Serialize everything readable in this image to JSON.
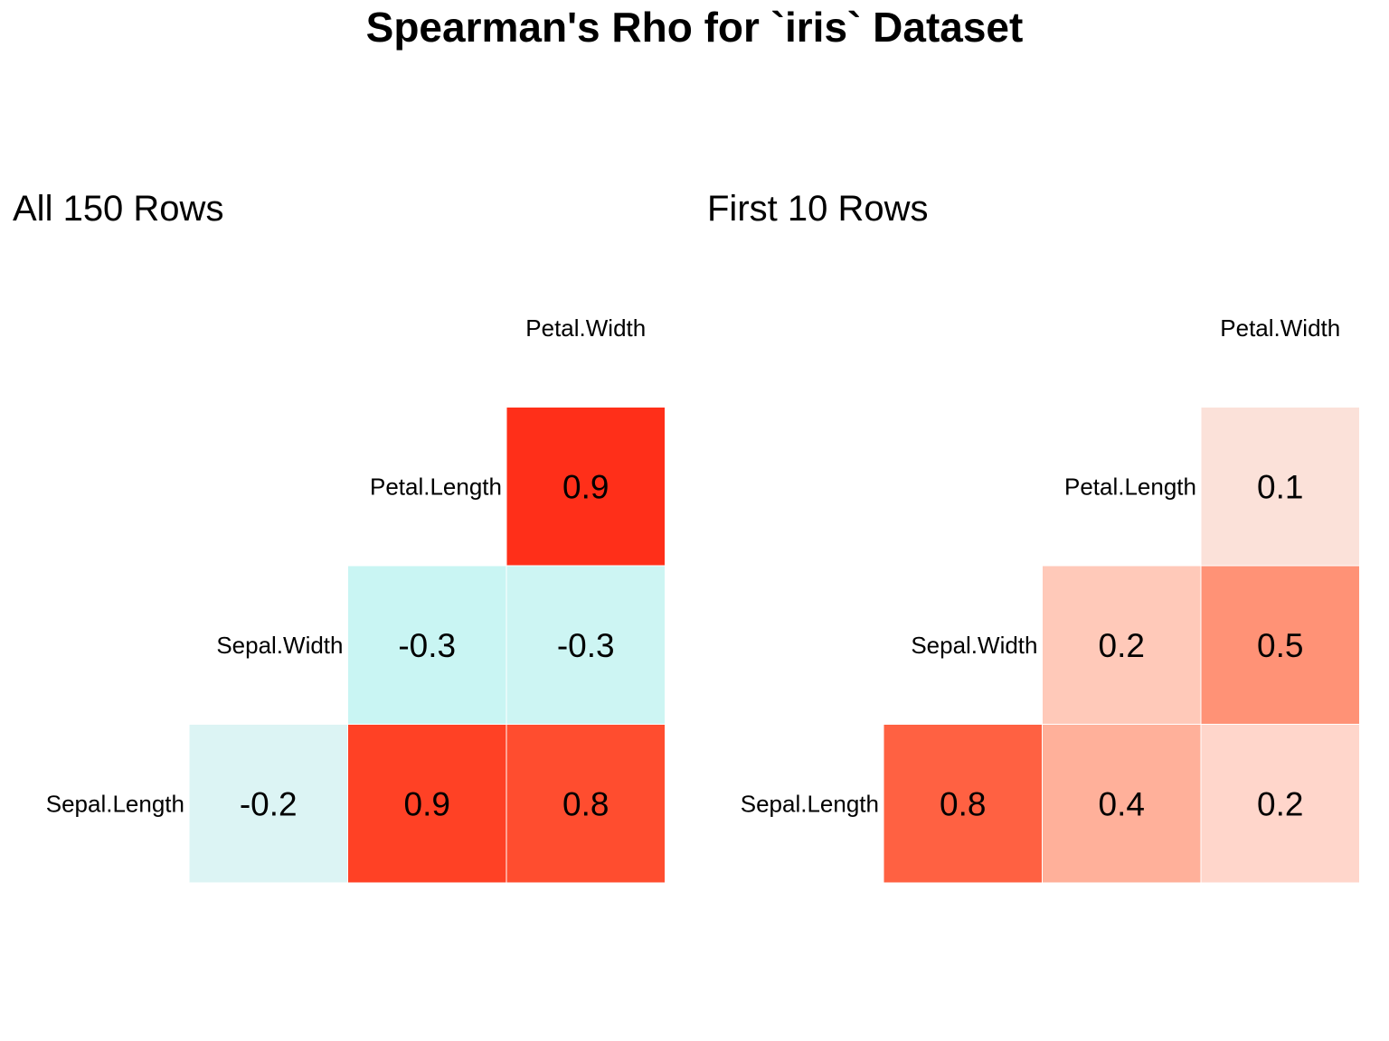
{
  "title": "Spearman's Rho for `iris` Dataset",
  "chart_data": [
    {
      "type": "heatmap",
      "title": "All 150 Rows",
      "variables": [
        "Sepal.Length",
        "Sepal.Width",
        "Petal.Length",
        "Petal.Width"
      ],
      "cells": [
        {
          "row": "Sepal.Length",
          "col": "Sepal.Width",
          "value": -0.2,
          "label": "-0.2",
          "color": "#dcf4f4"
        },
        {
          "row": "Sepal.Length",
          "col": "Petal.Length",
          "value": 0.9,
          "label": "0.9",
          "color": "#ff4125"
        },
        {
          "row": "Sepal.Length",
          "col": "Petal.Width",
          "value": 0.8,
          "label": "0.8",
          "color": "#ff4d2f"
        },
        {
          "row": "Sepal.Width",
          "col": "Petal.Length",
          "value": -0.3,
          "label": "-0.3",
          "color": "#c9f5f3"
        },
        {
          "row": "Sepal.Width",
          "col": "Petal.Width",
          "value": -0.3,
          "label": "-0.3",
          "color": "#cdf5f3"
        },
        {
          "row": "Petal.Length",
          "col": "Petal.Width",
          "value": 0.9,
          "label": "0.9",
          "color": "#ff2f19"
        }
      ]
    },
    {
      "type": "heatmap",
      "title": "First 10 Rows",
      "variables": [
        "Sepal.Length",
        "Sepal.Width",
        "Petal.Length",
        "Petal.Width"
      ],
      "cells": [
        {
          "row": "Sepal.Length",
          "col": "Sepal.Width",
          "value": 0.8,
          "label": "0.8",
          "color": "#ff6142"
        },
        {
          "row": "Sepal.Length",
          "col": "Petal.Length",
          "value": 0.4,
          "label": "0.4",
          "color": "#ffb09a"
        },
        {
          "row": "Sepal.Length",
          "col": "Petal.Width",
          "value": 0.2,
          "label": "0.2",
          "color": "#ffd6cb"
        },
        {
          "row": "Sepal.Width",
          "col": "Petal.Length",
          "value": 0.2,
          "label": "0.2",
          "color": "#ffc9b9"
        },
        {
          "row": "Sepal.Width",
          "col": "Petal.Width",
          "value": 0.5,
          "label": "0.5",
          "color": "#ff9276"
        },
        {
          "row": "Petal.Length",
          "col": "Petal.Width",
          "value": 0.1,
          "label": "0.1",
          "color": "#fbe1d9"
        }
      ]
    }
  ]
}
